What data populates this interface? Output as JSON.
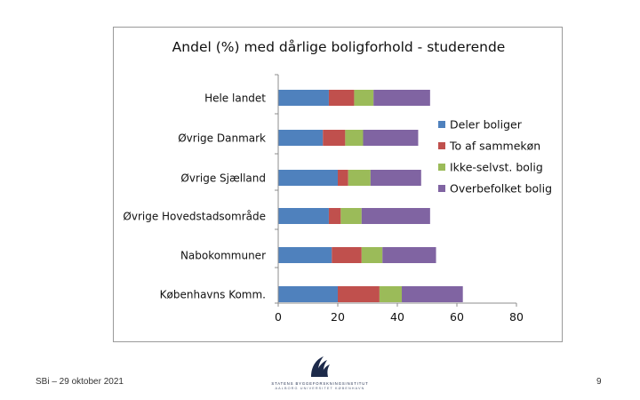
{
  "chart_data": {
    "type": "bar",
    "orientation": "horizontal",
    "stacked": true,
    "title": "Andel (%) med dårlige boligforhold - studerende",
    "categories": [
      "Hele landet",
      "Øvrige Danmark",
      "Øvrige Sjælland",
      "Øvrige Hovedstadsområde",
      "Nabokommuner",
      "Københavns Komm."
    ],
    "series": [
      {
        "name": "Deler boliger",
        "color": "#4f81bd",
        "values": [
          17,
          15,
          20,
          17,
          18,
          20
        ]
      },
      {
        "name": "To af sammekøn",
        "color": "#c0504d",
        "values": [
          8.5,
          7.5,
          3.5,
          4,
          10,
          14
        ]
      },
      {
        "name": "Ikke-selvst. bolig",
        "color": "#9bbb59",
        "values": [
          6.5,
          6,
          7.5,
          7,
          7,
          7.5
        ]
      },
      {
        "name": "Overbefolket bolig",
        "color": "#8064a2",
        "values": [
          19,
          18.5,
          17,
          23,
          18,
          20.5
        ]
      }
    ],
    "xlim": [
      0,
      80
    ],
    "xticks": [
      0,
      20,
      40,
      60,
      80
    ],
    "xlabel": "",
    "ylabel": "",
    "grid": false,
    "legend": "right"
  },
  "footer": {
    "left": "SBi – 29 oktober 2021",
    "page": "9"
  },
  "logo": {
    "line1": "STATENS BYGGEFORSKNINGSINSTITUT",
    "line2": "AALBORG UNIVERSITET KØBENHAVN"
  }
}
